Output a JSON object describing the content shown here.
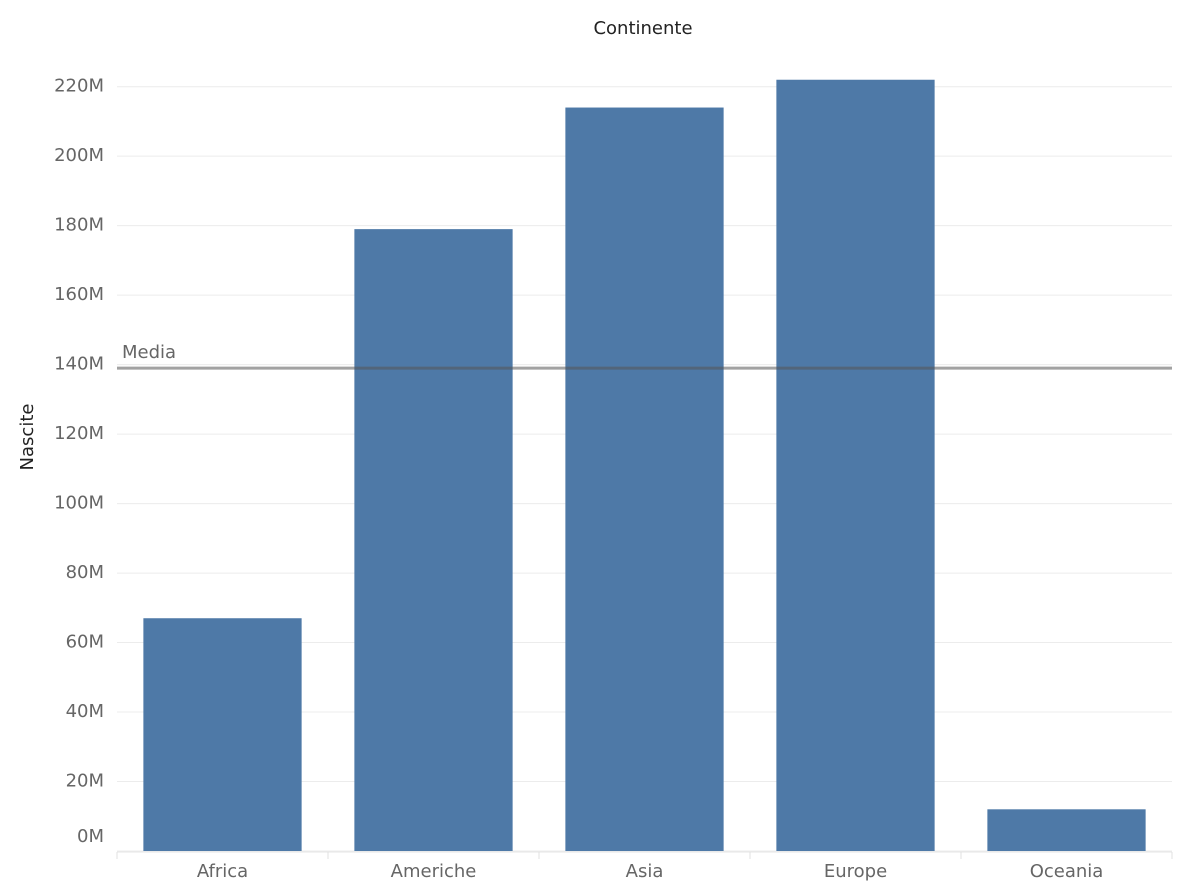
{
  "chart_data": {
    "type": "bar",
    "title": "Continente",
    "y_label": "Nascite",
    "categories": [
      "Africa",
      "Americhe",
      "Asia",
      "Europe",
      "Oceania"
    ],
    "values": [
      67000000,
      179000000,
      214000000,
      222000000,
      12000000
    ],
    "color": "#4e79a7",
    "ylim": [
      0,
      232000000
    ],
    "yticks": [
      {
        "value": 0,
        "label": "0M"
      },
      {
        "value": 20000000,
        "label": "20M"
      },
      {
        "value": 40000000,
        "label": "40M"
      },
      {
        "value": 60000000,
        "label": "60M"
      },
      {
        "value": 80000000,
        "label": "80M"
      },
      {
        "value": 100000000,
        "label": "100M"
      },
      {
        "value": 120000000,
        "label": "120M"
      },
      {
        "value": 140000000,
        "label": "140M"
      },
      {
        "value": 160000000,
        "label": "160M"
      },
      {
        "value": 180000000,
        "label": "180M"
      },
      {
        "value": 200000000,
        "label": "200M"
      },
      {
        "value": 220000000,
        "label": "220M"
      }
    ],
    "grid": true,
    "reference_line": {
      "label": "Media",
      "value": 139000000
    }
  }
}
